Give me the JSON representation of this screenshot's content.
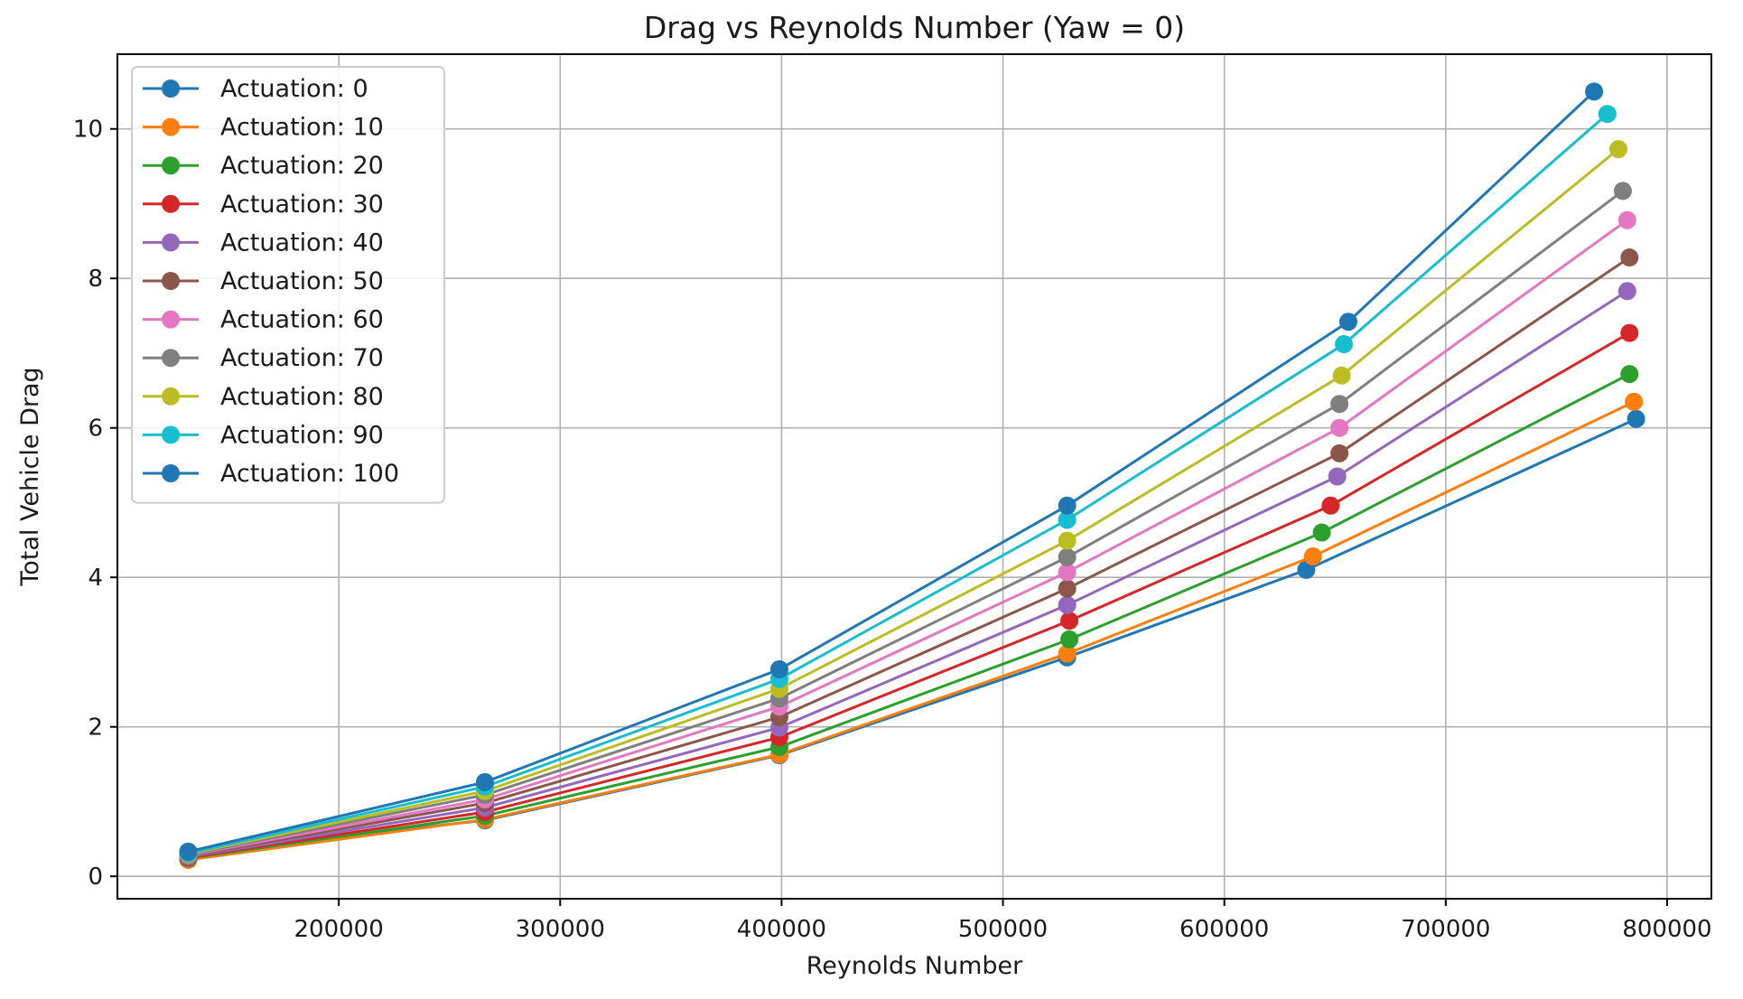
{
  "chart_data": {
    "type": "line",
    "title": "Drag vs Reynolds Number (Yaw = 0)",
    "xlabel": "Reynolds Number",
    "ylabel": "Total Vehicle Drag",
    "xlim": [
      100000,
      820000
    ],
    "ylim": [
      -0.3,
      11.0
    ],
    "xticks": [
      200000,
      300000,
      400000,
      500000,
      600000,
      700000,
      800000
    ],
    "yticks": [
      0,
      2,
      4,
      6,
      8,
      10
    ],
    "grid": true,
    "legend_position": "top-left",
    "series": [
      {
        "name": "Actuation: 0",
        "color": "#1f77b4",
        "x": [
          132000,
          266000,
          399000,
          529000,
          637000,
          786000
        ],
        "y": [
          0.3,
          0.75,
          1.62,
          2.93,
          4.1,
          6.12
        ]
      },
      {
        "name": "Actuation: 10",
        "color": "#ff7f0e",
        "x": [
          132000,
          266000,
          399000,
          529000,
          640000,
          785000
        ],
        "y": [
          0.22,
          0.76,
          1.63,
          2.98,
          4.28,
          6.35
        ]
      },
      {
        "name": "Actuation: 20",
        "color": "#2ca02c",
        "x": [
          132000,
          266000,
          399000,
          530000,
          644000,
          783000
        ],
        "y": [
          0.24,
          0.81,
          1.73,
          3.17,
          4.6,
          6.72
        ]
      },
      {
        "name": "Actuation: 30",
        "color": "#d62728",
        "x": [
          132000,
          266000,
          399000,
          530000,
          648000,
          783000
        ],
        "y": [
          0.25,
          0.86,
          1.86,
          3.42,
          4.96,
          7.27
        ]
      },
      {
        "name": "Actuation: 40",
        "color": "#9467bd",
        "x": [
          132000,
          266000,
          399000,
          529000,
          651000,
          782000
        ],
        "y": [
          0.26,
          0.92,
          1.99,
          3.63,
          5.35,
          7.83
        ]
      },
      {
        "name": "Actuation: 50",
        "color": "#8c564b",
        "x": [
          132000,
          266000,
          399000,
          529000,
          652000,
          783000
        ],
        "y": [
          0.27,
          0.98,
          2.13,
          3.85,
          5.66,
          8.28
        ]
      },
      {
        "name": "Actuation: 60",
        "color": "#e377c2",
        "x": [
          132000,
          266000,
          399000,
          529000,
          652000,
          782000
        ],
        "y": [
          0.28,
          1.03,
          2.27,
          4.07,
          6.0,
          8.78
        ]
      },
      {
        "name": "Actuation: 70",
        "color": "#7f7f7f",
        "x": [
          132000,
          266000,
          399000,
          529000,
          652000,
          780000
        ],
        "y": [
          0.29,
          1.09,
          2.38,
          4.27,
          6.32,
          9.17
        ]
      },
      {
        "name": "Actuation: 80",
        "color": "#bcbd22",
        "x": [
          132000,
          266000,
          399000,
          529000,
          653000,
          778000
        ],
        "y": [
          0.3,
          1.14,
          2.51,
          4.49,
          6.7,
          9.73
        ]
      },
      {
        "name": "Actuation: 90",
        "color": "#17becf",
        "x": [
          132000,
          266000,
          399000,
          529000,
          654000,
          773000
        ],
        "y": [
          0.31,
          1.2,
          2.64,
          4.77,
          7.12,
          10.2
        ]
      },
      {
        "name": "Actuation: 100",
        "color": "#1f77b4",
        "x": [
          132000,
          266000,
          399000,
          529000,
          656000,
          767000
        ],
        "y": [
          0.33,
          1.26,
          2.77,
          4.96,
          7.42,
          10.5
        ]
      }
    ]
  }
}
